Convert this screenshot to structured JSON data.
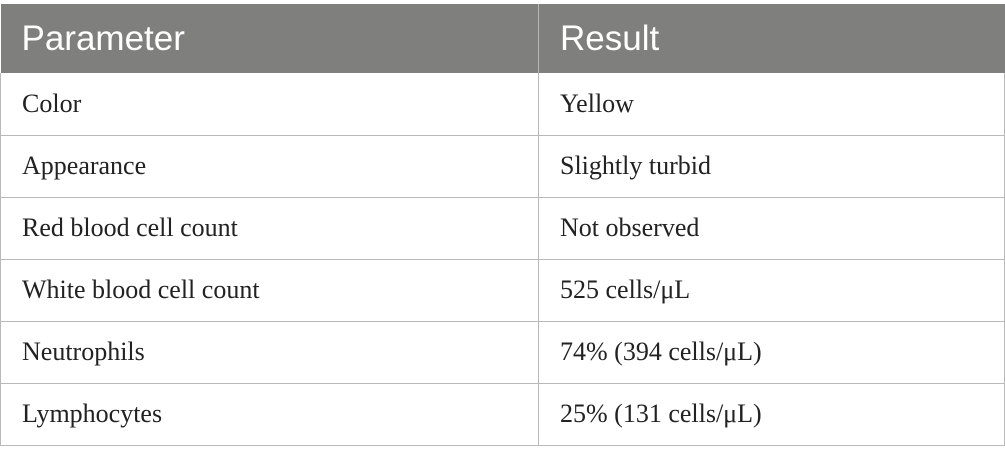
{
  "table": {
    "headers": [
      "Parameter",
      "Result"
    ],
    "rows": [
      [
        "Color",
        "Yellow"
      ],
      [
        "Appearance",
        "Slightly turbid"
      ],
      [
        "Red blood cell count",
        "Not observed"
      ],
      [
        "White blood cell count",
        "525 cells/μL"
      ],
      [
        "Neutrophils",
        "74% (394 cells/μL)"
      ],
      [
        "Lymphocytes",
        "25% (131 cells/μL)"
      ]
    ]
  }
}
